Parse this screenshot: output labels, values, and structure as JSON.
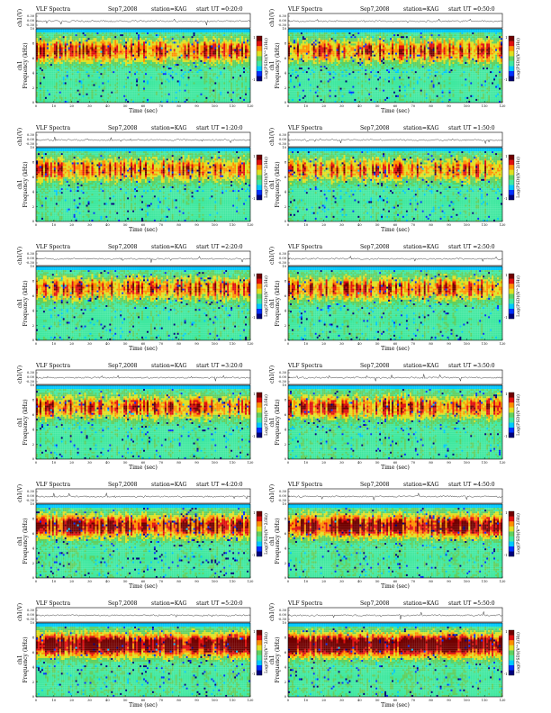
{
  "chart_data": [
    {
      "type": "heatmap",
      "header": {
        "title": "VLF Spectra",
        "date": "Sep7,2008",
        "station": "station=KAG",
        "start": "start UT =0:20:0"
      },
      "xlabel": "Time (sec)",
      "ylabel": "Frequency (kHz)",
      "ylabel_top": "ch1",
      "ts_label": "ch1(V)",
      "ts_ticks": [
        "0.30",
        "0.00",
        "-0.30"
      ],
      "xlim": [
        0,
        120
      ],
      "xticks": [
        0,
        10,
        20,
        30,
        40,
        50,
        60,
        70,
        80,
        90,
        100,
        110,
        120
      ],
      "ylim": [
        0,
        10
      ],
      "yticks": [
        0,
        2,
        4,
        6,
        8,
        10
      ],
      "colorbar_label": "Log(PSD)(V^2/Hz)",
      "colorbar_ticks": [
        "1",
        "-1"
      ],
      "activity": 0.35
    },
    {
      "type": "heatmap",
      "header": {
        "title": "VLF Spectra",
        "date": "Sep7,2008",
        "station": "station=KAG",
        "start": "start UT =0:50:0"
      },
      "xlabel": "Time (sec)",
      "ylabel": "Frequency (kHz)",
      "ylabel_top": "ch1",
      "ts_label": "ch1(V)",
      "ts_ticks": [
        "0.30",
        "0.00",
        "-0.30"
      ],
      "xlim": [
        0,
        120
      ],
      "xticks": [
        0,
        10,
        20,
        30,
        40,
        50,
        60,
        70,
        80,
        90,
        100,
        110,
        120
      ],
      "ylim": [
        0,
        10
      ],
      "yticks": [
        0,
        2,
        4,
        6,
        8,
        10
      ],
      "colorbar_label": "Log(PSD)(V^2/Hz)",
      "colorbar_ticks": [
        "1",
        "-1"
      ],
      "activity": 0.3
    },
    {
      "type": "heatmap",
      "header": {
        "title": "VLF Spectra",
        "date": "Sep7,2008",
        "station": "station=KAG",
        "start": "start UT =1:20:0"
      },
      "xlabel": "Time (sec)",
      "ylabel": "Frequency (kHz)",
      "ylabel_top": "ch1",
      "ts_label": "ch1(V)",
      "ts_ticks": [
        "0.30",
        "0.00",
        "-0.30"
      ],
      "xlim": [
        0,
        120
      ],
      "xticks": [
        0,
        10,
        20,
        30,
        40,
        50,
        60,
        70,
        80,
        90,
        100,
        110,
        120
      ],
      "ylim": [
        0,
        10
      ],
      "yticks": [
        0,
        2,
        4,
        6,
        8,
        10
      ],
      "colorbar_label": "Log(PSD)(V^2/Hz)",
      "colorbar_ticks": [
        "1",
        "-1"
      ],
      "activity": 0.3
    },
    {
      "type": "heatmap",
      "header": {
        "title": "VLF Spectra",
        "date": "Sep7,2008",
        "station": "station=KAG",
        "start": "start UT =1:50:0"
      },
      "xlabel": "Time (sec)",
      "ylabel": "Frequency (kHz)",
      "ylabel_top": "ch1",
      "ts_label": "ch1(V)",
      "ts_ticks": [
        "0.30",
        "0.00",
        "-0.30"
      ],
      "xlim": [
        0,
        120
      ],
      "xticks": [
        0,
        10,
        20,
        30,
        40,
        50,
        60,
        70,
        80,
        90,
        100,
        110,
        120
      ],
      "ylim": [
        0,
        10
      ],
      "yticks": [
        0,
        2,
        4,
        6,
        8,
        10
      ],
      "colorbar_label": "Log(PSD)(V^2/Hz)",
      "colorbar_ticks": [
        "1",
        "-1"
      ],
      "activity": 0.25
    },
    {
      "type": "heatmap",
      "header": {
        "title": "VLF Spectra",
        "date": "Sep7,2008",
        "station": "station=KAG",
        "start": "start UT =2:20:0"
      },
      "xlabel": "Time (sec)",
      "ylabel": "Frequency (kHz)",
      "ylabel_top": "ch1",
      "ts_label": "ch1(V)",
      "ts_ticks": [
        "0.30",
        "0.00",
        "-0.30"
      ],
      "xlim": [
        0,
        120
      ],
      "xticks": [
        0,
        10,
        20,
        30,
        40,
        50,
        60,
        70,
        80,
        90,
        100,
        110,
        120
      ],
      "ylim": [
        0,
        10
      ],
      "yticks": [
        0,
        2,
        4,
        6,
        8,
        10
      ],
      "colorbar_label": "Log(PSD)(V^2/Hz)",
      "colorbar_ticks": [
        "1",
        "-1"
      ],
      "activity": 0.3
    },
    {
      "type": "heatmap",
      "header": {
        "title": "VLF Spectra",
        "date": "Sep7,2008",
        "station": "station=KAG",
        "start": "start UT =2:50:0"
      },
      "xlabel": "Time (sec)",
      "ylabel": "Frequency (kHz)",
      "ylabel_top": "ch1",
      "ts_label": "ch1(V)",
      "ts_ticks": [
        "0.30",
        "0.00",
        "-0.30"
      ],
      "xlim": [
        0,
        120
      ],
      "xticks": [
        0,
        10,
        20,
        30,
        40,
        50,
        60,
        70,
        80,
        90,
        100,
        110,
        120
      ],
      "ylim": [
        0,
        10
      ],
      "yticks": [
        0,
        2,
        4,
        6,
        8,
        10
      ],
      "colorbar_label": "Log(PSD)(V^2/Hz)",
      "colorbar_ticks": [
        "1",
        "-1"
      ],
      "activity": 0.3
    },
    {
      "type": "heatmap",
      "header": {
        "title": "VLF Spectra",
        "date": "Sep7,2008",
        "station": "station=KAG",
        "start": "start UT =3:20:0"
      },
      "xlabel": "Time (sec)",
      "ylabel": "Frequency (kHz)",
      "ylabel_top": "ch1",
      "ts_label": "ch1(V)",
      "ts_ticks": [
        "0.30",
        "0.00",
        "-0.30"
      ],
      "xlim": [
        0,
        120
      ],
      "xticks": [
        0,
        10,
        20,
        30,
        40,
        50,
        60,
        70,
        80,
        90,
        100,
        110,
        120
      ],
      "ylim": [
        0,
        10
      ],
      "yticks": [
        0,
        2,
        4,
        6,
        8,
        10
      ],
      "colorbar_label": "Log(PSD)(V^2/Hz)",
      "colorbar_ticks": [
        "1",
        "-1"
      ],
      "activity": 0.3
    },
    {
      "type": "heatmap",
      "header": {
        "title": "VLF Spectra",
        "date": "Sep7,2008",
        "station": "station=KAG",
        "start": "start UT =3:50:0"
      },
      "xlabel": "Time (sec)",
      "ylabel": "Frequency (kHz)",
      "ylabel_top": "ch1",
      "ts_label": "ch1(V)",
      "ts_ticks": [
        "0.30",
        "0.00",
        "-0.30"
      ],
      "xlim": [
        0,
        120
      ],
      "xticks": [
        0,
        10,
        20,
        30,
        40,
        50,
        60,
        70,
        80,
        90,
        100,
        110,
        120
      ],
      "ylim": [
        0,
        10
      ],
      "yticks": [
        0,
        2,
        4,
        6,
        8,
        10
      ],
      "colorbar_label": "Log(PSD)(V^2/Hz)",
      "colorbar_ticks": [
        "1",
        "-1"
      ],
      "activity": 0.3
    },
    {
      "type": "heatmap",
      "header": {
        "title": "VLF Spectra",
        "date": "Sep7,2008",
        "station": "station=KAG",
        "start": "start UT =4:20:0"
      },
      "xlabel": "Time (sec)",
      "ylabel": "Frequency (kHz)",
      "ylabel_top": "ch1",
      "ts_label": "ch1(V)",
      "ts_ticks": [
        "0.30",
        "0.00",
        "-0.30"
      ],
      "xlim": [
        0,
        120
      ],
      "xticks": [
        0,
        10,
        20,
        30,
        40,
        50,
        60,
        70,
        80,
        90,
        100,
        110,
        120
      ],
      "ylim": [
        0,
        10
      ],
      "yticks": [
        0,
        2,
        4,
        6,
        8,
        10
      ],
      "colorbar_label": "Log(PSD)(V^2/Hz)",
      "colorbar_ticks": [
        "1",
        "-1"
      ],
      "activity": 0.55
    },
    {
      "type": "heatmap",
      "header": {
        "title": "VLF Spectra",
        "date": "Sep7,2008",
        "station": "station=KAG",
        "start": "start UT =4:50:0"
      },
      "xlabel": "Time (sec)",
      "ylabel": "Frequency (kHz)",
      "ylabel_top": "ch1",
      "ts_label": "ch1(V)",
      "ts_ticks": [
        "0.30",
        "0.00",
        "-0.30"
      ],
      "xlim": [
        0,
        120
      ],
      "xticks": [
        0,
        10,
        20,
        30,
        40,
        50,
        60,
        70,
        80,
        90,
        100,
        110,
        120
      ],
      "ylim": [
        0,
        10
      ],
      "yticks": [
        0,
        2,
        4,
        6,
        8,
        10
      ],
      "colorbar_label": "Log(PSD)(V^2/Hz)",
      "colorbar_ticks": [
        "1",
        "-1"
      ],
      "activity": 0.6
    },
    {
      "type": "heatmap",
      "header": {
        "title": "VLF Spectra",
        "date": "Sep7,2008",
        "station": "station=KAG",
        "start": "start UT =5:20:0"
      },
      "xlabel": "Time (sec)",
      "ylabel": "Frequency (kHz)",
      "ylabel_top": "ch1",
      "ts_label": "ch1(V)",
      "ts_ticks": [
        "0.30",
        "0.00",
        "-0.30"
      ],
      "xlim": [
        0,
        120
      ],
      "xticks": [
        0,
        10,
        20,
        30,
        40,
        50,
        60,
        70,
        80,
        90,
        100,
        110,
        120
      ],
      "ylim": [
        0,
        10
      ],
      "yticks": [
        0,
        2,
        4,
        6,
        8,
        10
      ],
      "colorbar_label": "Log(PSD)(V^2/Hz)",
      "colorbar_ticks": [
        "1",
        "-1"
      ],
      "activity": 0.8
    },
    {
      "type": "heatmap",
      "header": {
        "title": "VLF Spectra",
        "date": "Sep7,2008",
        "station": "station=KAG",
        "start": "start UT =5:50:0"
      },
      "xlabel": "Time (sec)",
      "ylabel": "Frequency (kHz)",
      "ylabel_top": "ch1",
      "ts_label": "ch1(V)",
      "ts_ticks": [
        "0.30",
        "0.00",
        "-0.30"
      ],
      "xlim": [
        0,
        120
      ],
      "xticks": [
        0,
        10,
        20,
        30,
        40,
        50,
        60,
        70,
        80,
        90,
        100,
        110,
        120
      ],
      "ylim": [
        0,
        10
      ],
      "yticks": [
        0,
        2,
        4,
        6,
        8,
        10
      ],
      "colorbar_label": "Log(PSD)(V^2/Hz)",
      "colorbar_ticks": [
        "1",
        "-1"
      ],
      "activity": 0.85
    }
  ],
  "colors": {
    "colormap": [
      "#00007a",
      "#0030ff",
      "#00c8ff",
      "#40e8a0",
      "#60d060",
      "#e0e020",
      "#ff9000",
      "#e01010",
      "#700000"
    ],
    "band_top": "#1fd8ee",
    "band_low": "#3fcfb0"
  }
}
